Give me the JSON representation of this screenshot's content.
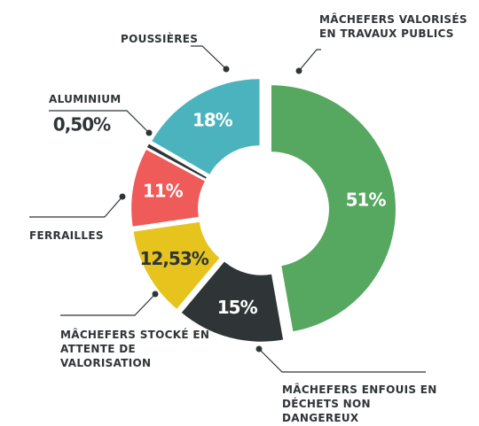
{
  "chart_data": {
    "type": "donut",
    "categories": [
      "MÂCHEFERS VALORISÉS EN TRAVAUX PUBLICS",
      "MÂCHEFERS ENFOUIS EN DÉCHETS NON DANGEREUX",
      "MÂCHEFERS STOCKÉ EN ATTENTE DE VALORISATION",
      "FERRAILLES",
      "ALUMINIUM",
      "POUSSIÈRES"
    ],
    "values": [
      51,
      15,
      12.53,
      11,
      0.5,
      18
    ],
    "value_labels": [
      "51%",
      "15%",
      "12,53%",
      "11%",
      "0,50%",
      "18%"
    ],
    "colors": [
      "#56a75f",
      "#2f3537",
      "#e6c31d",
      "#ee5b58",
      "#2f3537",
      "#4bb3be"
    ]
  }
}
